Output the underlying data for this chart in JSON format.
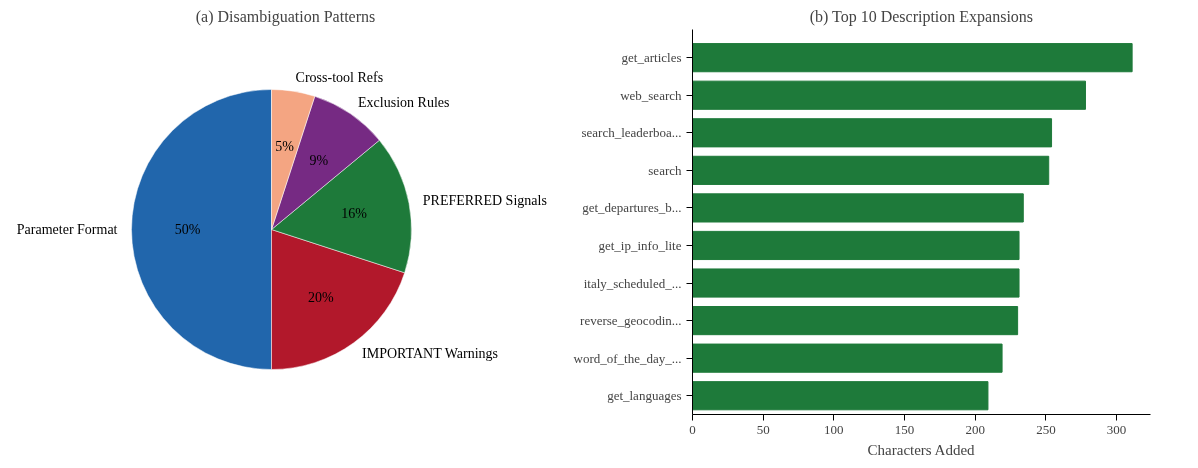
{
  "chart_data": [
    {
      "type": "pie",
      "title": "(a) Disambiguation Patterns",
      "categories": [
        "Parameter Format",
        "IMPORTANT Warnings",
        "PREFERRED Signals",
        "Exclusion Rules",
        "Cross-tool Refs"
      ],
      "values": [
        50,
        20,
        16,
        9,
        5
      ],
      "colors": [
        "#2166ac",
        "#b2182b",
        "#1e7a3a",
        "#762a83",
        "#f4a582"
      ],
      "value_labels": [
        "50%",
        "20%",
        "16%",
        "9%",
        "5%"
      ]
    },
    {
      "type": "bar",
      "orientation": "horizontal",
      "title": "(b) Top 10 Description Expansions",
      "xlabel": "Characters Added",
      "categories": [
        "get_articles",
        "web_search",
        "search_leaderboa...",
        "search",
        "get_departures_b...",
        "get_ip_info_lite",
        "italy_scheduled_...",
        "reverse_geocodin...",
        "word_of_the_day_...",
        "get_languages"
      ],
      "values": [
        311,
        278,
        254,
        252,
        234,
        231,
        231,
        230,
        219,
        209
      ],
      "color": "#1e7a3a",
      "xlim": [
        0,
        324
      ],
      "xticks": [
        0,
        50,
        100,
        150,
        200,
        250,
        300
      ],
      "grid": false
    }
  ]
}
